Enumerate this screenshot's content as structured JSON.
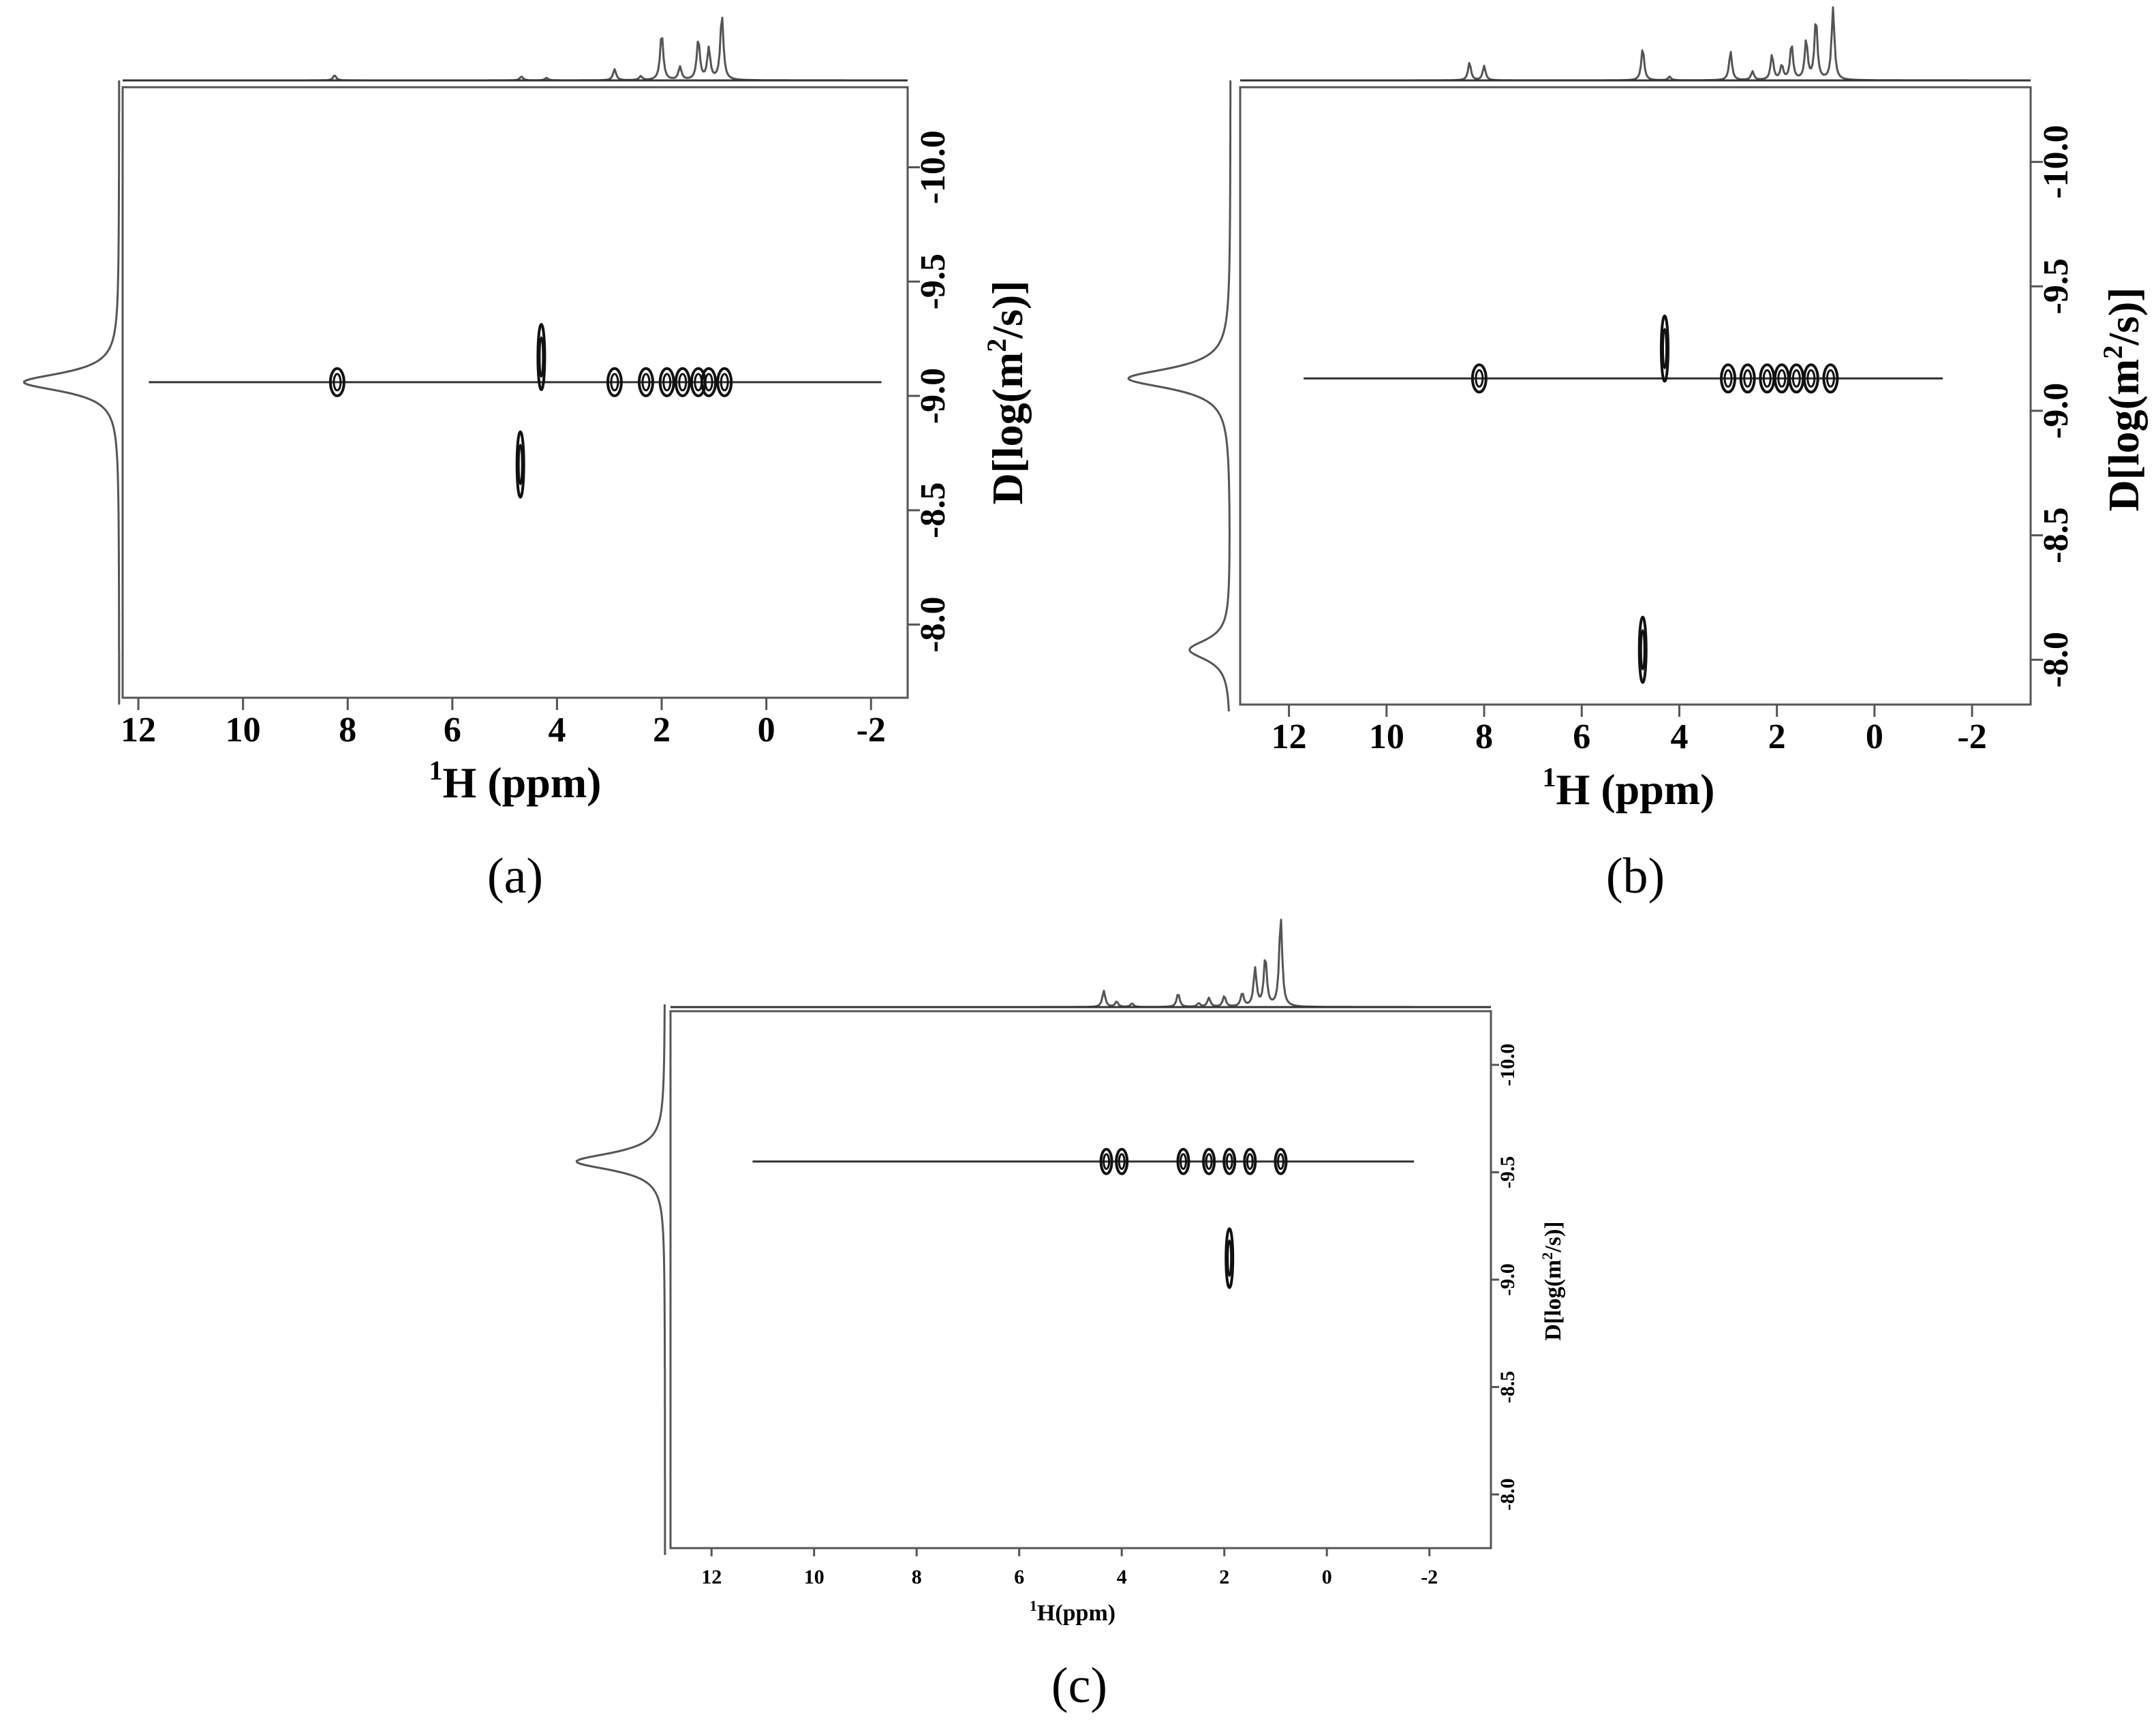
{
  "chart_data": [
    {
      "type": "scatter",
      "panel_label": "(a)",
      "xlabel": "1H (ppm)",
      "xlabel_sup": "1",
      "xlabel_main": "H (ppm)",
      "ylabel": "D[log(m2/s)]",
      "xlim": [
        12.3,
        -2.7
      ],
      "ylim": [
        -7.68,
        -10.35
      ],
      "x_ticks": [
        "12",
        "10",
        "8",
        "6",
        "4",
        "2",
        "0",
        "-2"
      ],
      "y_ticks": [
        "-10.0",
        "-9.5",
        "-9.0",
        "-8.5",
        "-8.0"
      ],
      "diffusion_line": {
        "y": -9.06,
        "x_from": 11.8,
        "x_to": -2.2
      },
      "diffusion_peaks": [
        {
          "x": 8.2,
          "y": -9.06
        },
        {
          "x": 4.7,
          "y": -8.7
        },
        {
          "x": 4.3,
          "y": -9.17
        },
        {
          "x": 2.9,
          "y": -9.06
        },
        {
          "x": 2.3,
          "y": -9.06
        },
        {
          "x": 1.9,
          "y": -9.06
        },
        {
          "x": 1.6,
          "y": -9.06
        },
        {
          "x": 1.3,
          "y": -9.06
        },
        {
          "x": 1.1,
          "y": -9.06
        },
        {
          "x": 0.8,
          "y": -9.06
        }
      ],
      "spectrum_1h_peaks": [
        {
          "ppm": 8.25,
          "height": 0.08
        },
        {
          "ppm": 4.68,
          "height": 0.06
        },
        {
          "ppm": 4.2,
          "height": 0.04
        },
        {
          "ppm": 2.9,
          "height": 0.17
        },
        {
          "ppm": 2.4,
          "height": 0.06
        },
        {
          "ppm": 2.0,
          "height": 0.72
        },
        {
          "ppm": 1.65,
          "height": 0.2
        },
        {
          "ppm": 1.3,
          "height": 0.62
        },
        {
          "ppm": 1.1,
          "height": 0.48
        },
        {
          "ppm": 0.85,
          "height": 1.0
        }
      ],
      "diffusion_projection_peaks": [
        {
          "y": -9.06,
          "height": 1.0
        }
      ]
    },
    {
      "type": "scatter",
      "panel_label": "(b)",
      "xlabel": "1H (ppm)",
      "xlabel_sup": "1",
      "xlabel_main": "H (ppm)",
      "ylabel": "D[log(m2/s)]",
      "xlim": [
        13.0,
        -3.2
      ],
      "ylim": [
        -7.82,
        -10.3
      ],
      "x_ticks": [
        "12",
        "10",
        "8",
        "6",
        "4",
        "2",
        "0",
        "-2"
      ],
      "y_ticks": [
        "-10.0",
        "-9.5",
        "-9.0",
        "-8.5",
        "-8.0"
      ],
      "diffusion_line": {
        "y": -9.13,
        "x_from": 11.7,
        "x_to": -1.4
      },
      "diffusion_peaks": [
        {
          "x": 8.1,
          "y": -9.13
        },
        {
          "x": 4.75,
          "y": -8.04
        },
        {
          "x": 4.3,
          "y": -9.25
        },
        {
          "x": 3.0,
          "y": -9.13
        },
        {
          "x": 2.6,
          "y": -9.13
        },
        {
          "x": 2.2,
          "y": -9.13
        },
        {
          "x": 1.9,
          "y": -9.13
        },
        {
          "x": 1.6,
          "y": -9.13
        },
        {
          "x": 1.3,
          "y": -9.13
        },
        {
          "x": 0.9,
          "y": -9.13
        }
      ],
      "spectrum_1h_peaks": [
        {
          "ppm": 8.3,
          "height": 0.25
        },
        {
          "ppm": 8.0,
          "height": 0.2
        },
        {
          "ppm": 4.75,
          "height": 0.45
        },
        {
          "ppm": 4.2,
          "height": 0.05
        },
        {
          "ppm": 2.95,
          "height": 0.4
        },
        {
          "ppm": 2.5,
          "height": 0.12
        },
        {
          "ppm": 2.1,
          "height": 0.35
        },
        {
          "ppm": 1.9,
          "height": 0.2
        },
        {
          "ppm": 1.7,
          "height": 0.5
        },
        {
          "ppm": 1.4,
          "height": 0.55
        },
        {
          "ppm": 1.2,
          "height": 0.85
        },
        {
          "ppm": 0.85,
          "height": 1.0
        }
      ],
      "diffusion_projection_peaks": [
        {
          "y": -9.13,
          "height": 1.0
        },
        {
          "y": -8.04,
          "height": 0.4
        }
      ]
    },
    {
      "type": "scatter",
      "panel_label": "(c)",
      "xlabel": "1H(ppm)",
      "xlabel_sup": "1",
      "xlabel_main": "H(ppm)",
      "ylabel": "D[log(m2/s)]",
      "xlim": [
        12.8,
        -3.2
      ],
      "ylim": [
        -7.75,
        -10.25
      ],
      "x_ticks": [
        "12",
        "10",
        "8",
        "6",
        "4",
        "2",
        "0",
        "-2"
      ],
      "y_ticks": [
        "-10.0",
        "-9.5",
        "-9.0",
        "-8.5",
        "-8.0"
      ],
      "diffusion_line": {
        "y": -9.55,
        "x_from": 11.2,
        "x_to": -1.7
      },
      "diffusion_peaks": [
        {
          "x": 4.3,
          "y": -9.55
        },
        {
          "x": 4.0,
          "y": -9.55
        },
        {
          "x": 2.8,
          "y": -9.55
        },
        {
          "x": 2.3,
          "y": -9.55
        },
        {
          "x": 1.9,
          "y": -9.55
        },
        {
          "x": 1.9,
          "y": -9.1
        },
        {
          "x": 1.5,
          "y": -9.55
        },
        {
          "x": 0.9,
          "y": -9.55
        }
      ],
      "spectrum_1h_peaks": [
        {
          "ppm": 4.35,
          "height": 0.18
        },
        {
          "ppm": 4.1,
          "height": 0.06
        },
        {
          "ppm": 3.8,
          "height": 0.04
        },
        {
          "ppm": 2.9,
          "height": 0.15
        },
        {
          "ppm": 2.5,
          "height": 0.04
        },
        {
          "ppm": 2.3,
          "height": 0.1
        },
        {
          "ppm": 2.0,
          "height": 0.12
        },
        {
          "ppm": 1.65,
          "height": 0.15
        },
        {
          "ppm": 1.4,
          "height": 0.42
        },
        {
          "ppm": 1.2,
          "height": 0.55
        },
        {
          "ppm": 0.9,
          "height": 1.0
        }
      ],
      "diffusion_projection_peaks": [
        {
          "y": -9.55,
          "height": 1.0
        }
      ]
    }
  ]
}
